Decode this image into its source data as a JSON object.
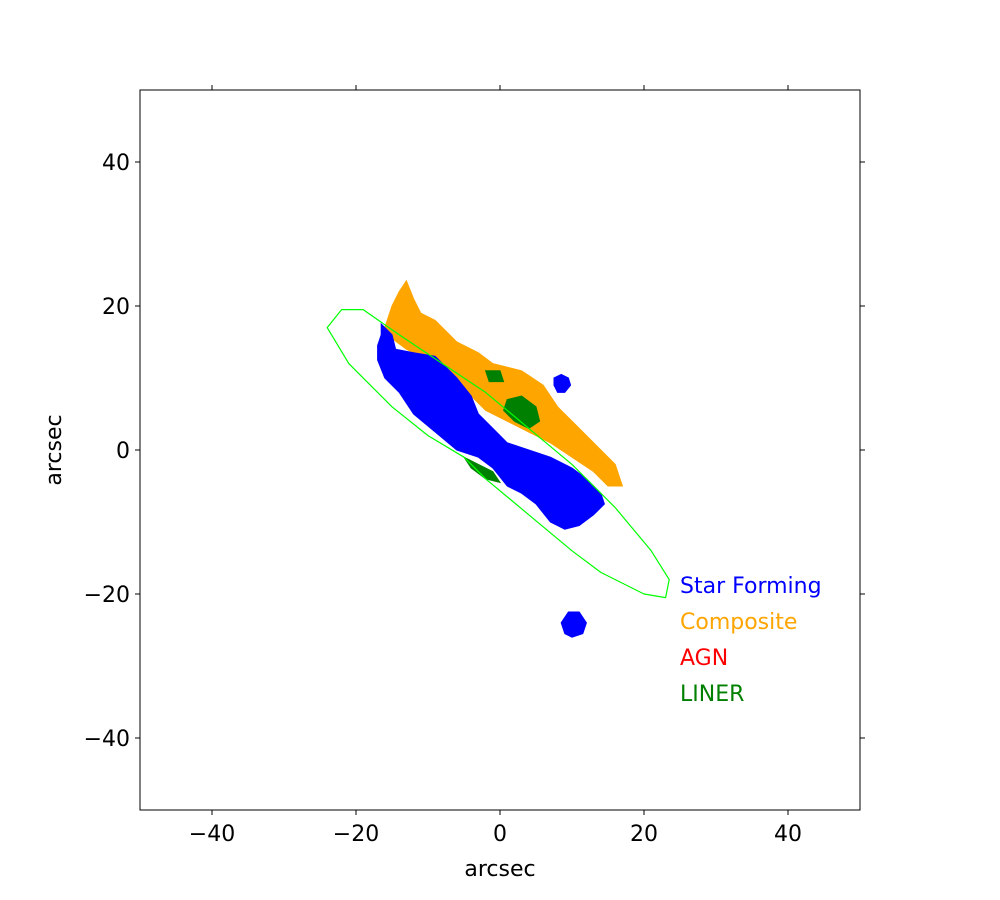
{
  "chart_data": {
    "type": "scatter",
    "title": "",
    "xlabel": "arcsec",
    "ylabel": "arcsec",
    "xlim": [
      -50,
      50
    ],
    "ylim": [
      -50,
      50
    ],
    "xticks": [
      -40,
      -20,
      0,
      20,
      40
    ],
    "yticks": [
      -40,
      -20,
      0,
      20,
      40
    ],
    "xtick_labels": [
      "−40",
      "−20",
      "0",
      "20",
      "40"
    ],
    "ytick_labels": [
      "−40",
      "−20",
      "0",
      "20",
      "40"
    ],
    "grid": false,
    "legend_position": "lower-right",
    "legend": [
      {
        "label": "Star Forming",
        "color": "#0000ff"
      },
      {
        "label": "Composite",
        "color": "#ffa500"
      },
      {
        "label": "AGN",
        "color": "#ff0000"
      },
      {
        "label": "LINER",
        "color": "#008000"
      }
    ],
    "ellipse": {
      "color": "#00ff00",
      "center": [
        -0.5,
        -0.5
      ],
      "semi_major": 26.5,
      "semi_minor": 6.2,
      "angle_deg": -34,
      "points": [
        [
          -22,
          19.5
        ],
        [
          -24,
          17
        ],
        [
          -21,
          12
        ],
        [
          -15,
          6
        ],
        [
          -10,
          2
        ],
        [
          -5,
          -1
        ],
        [
          -2,
          -4
        ],
        [
          4,
          -9
        ],
        [
          10,
          -14
        ],
        [
          14,
          -17
        ],
        [
          20,
          -20
        ],
        [
          23,
          -20.5
        ],
        [
          23.5,
          -18
        ],
        [
          21,
          -14
        ],
        [
          16,
          -8
        ],
        [
          10,
          -2
        ],
        [
          4,
          3
        ],
        [
          -2,
          8
        ],
        [
          -8,
          12
        ],
        [
          -14,
          16
        ],
        [
          -19,
          19.5
        ]
      ]
    },
    "regions": [
      {
        "class": "Composite",
        "color": "#ffa500",
        "polygons": [
          [
            [
              -13,
              23.5
            ],
            [
              -12,
              21
            ],
            [
              -11,
              19
            ],
            [
              -9,
              18
            ],
            [
              -8,
              17
            ],
            [
              -6,
              15
            ],
            [
              -3,
              13.5
            ],
            [
              -1,
              12
            ],
            [
              3,
              11
            ],
            [
              6,
              9
            ],
            [
              8,
              6
            ],
            [
              11,
              3
            ],
            [
              14,
              0
            ],
            [
              16,
              -2
            ],
            [
              17,
              -5
            ],
            [
              15,
              -5
            ],
            [
              13,
              -3
            ],
            [
              10,
              -1
            ],
            [
              7,
              1
            ],
            [
              4,
              2.5
            ],
            [
              1,
              4
            ],
            [
              -2,
              5.5
            ],
            [
              -4,
              7.5
            ],
            [
              -6,
              9
            ],
            [
              -8,
              10.5
            ],
            [
              -10,
              12
            ],
            [
              -12,
              14
            ],
            [
              -14,
              15
            ],
            [
              -16,
              17
            ],
            [
              -15,
              20
            ],
            [
              -14,
              22
            ]
          ],
          [
            [
              -14,
              18.5
            ],
            [
              -12,
              16
            ],
            [
              -10,
              15
            ],
            [
              -9,
              13.5
            ],
            [
              -11,
              13
            ],
            [
              -13,
              14
            ],
            [
              -15,
              15.5
            ]
          ]
        ]
      },
      {
        "class": "Star Forming",
        "color": "#0000ff",
        "polygons": [
          [
            [
              -16.5,
              17.5
            ],
            [
              -15,
              16
            ],
            [
              -14.5,
              14
            ],
            [
              -12,
              13.5
            ],
            [
              -9,
              13
            ],
            [
              -6,
              10
            ],
            [
              -4,
              7.5
            ],
            [
              -3,
              5
            ],
            [
              -1,
              3
            ],
            [
              1,
              1
            ],
            [
              4,
              0
            ],
            [
              7,
              -1
            ],
            [
              10,
              -2.5
            ],
            [
              12,
              -4
            ],
            [
              14,
              -6
            ],
            [
              14.5,
              -7.5
            ],
            [
              13,
              -9
            ],
            [
              11,
              -10.5
            ],
            [
              9,
              -11
            ],
            [
              7,
              -10
            ],
            [
              5,
              -7.5
            ],
            [
              3,
              -6
            ],
            [
              1,
              -5
            ],
            [
              -1,
              -2.5
            ],
            [
              -3,
              -1
            ],
            [
              -6,
              0
            ],
            [
              -9,
              2.5
            ],
            [
              -12,
              5
            ],
            [
              -14,
              8
            ],
            [
              -16,
              10
            ],
            [
              -17,
              12.5
            ],
            [
              -17,
              14.5
            ],
            [
              -16.5,
              16
            ]
          ],
          [
            [
              7.5,
              10
            ],
            [
              8.5,
              10.5
            ],
            [
              9.5,
              10
            ],
            [
              9.8,
              9
            ],
            [
              9,
              8
            ],
            [
              8,
              8
            ],
            [
              7.5,
              9
            ]
          ],
          [
            [
              8.5,
              -24
            ],
            [
              9.5,
              -22.5
            ],
            [
              11,
              -22.5
            ],
            [
              12,
              -24
            ],
            [
              11.5,
              -25.5
            ],
            [
              10,
              -26
            ],
            [
              9,
              -25.5
            ]
          ]
        ]
      },
      {
        "class": "LINER",
        "color": "#008000",
        "polygons": [
          [
            [
              1,
              7
            ],
            [
              3,
              7.5
            ],
            [
              5,
              6
            ],
            [
              5.5,
              4
            ],
            [
              4,
              3
            ],
            [
              2,
              4
            ],
            [
              0.5,
              5.5
            ]
          ],
          [
            [
              -5,
              -1
            ],
            [
              -3,
              -2
            ],
            [
              -1,
              -3
            ],
            [
              0,
              -4.5
            ],
            [
              -2,
              -4
            ],
            [
              -4,
              -2.5
            ]
          ],
          [
            [
              -2,
              11
            ],
            [
              0,
              11
            ],
            [
              0.5,
              9.5
            ],
            [
              -1.5,
              9.5
            ]
          ]
        ]
      }
    ]
  }
}
